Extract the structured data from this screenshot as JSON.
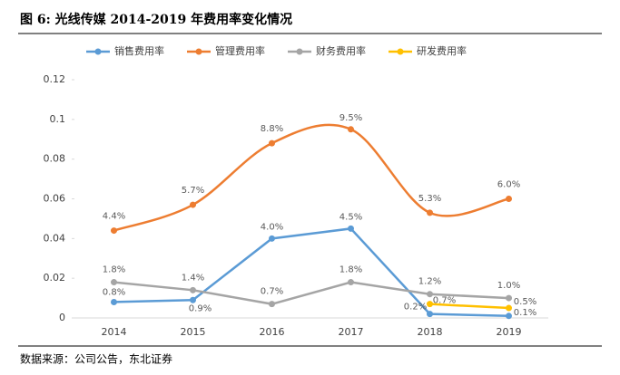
{
  "chart_data": {
    "type": "line",
    "title": "图 6:  光线传媒 2014-2019 年费用率变化情况",
    "source": "数据来源：公司公告，东北证券",
    "categories": [
      "2014",
      "2015",
      "2016",
      "2017",
      "2018",
      "2019"
    ],
    "ylim": [
      0,
      0.12
    ],
    "yticks": [
      0,
      0.02,
      0.04,
      0.06,
      0.08,
      0.1,
      0.12
    ],
    "legend": "top",
    "series": [
      {
        "name": "销售费用率",
        "color": "#5b9bd5",
        "smooth": false,
        "values": [
          0.008,
          0.009,
          0.04,
          0.045,
          0.002,
          0.001
        ],
        "value_labels": [
          "0.8%",
          "0.9%",
          "4.0%",
          "4.5%",
          "0.2%",
          "0.1%"
        ]
      },
      {
        "name": "管理费用率",
        "color": "#ed7d31",
        "smooth": true,
        "values": [
          0.044,
          0.057,
          0.088,
          0.095,
          0.053,
          0.06
        ],
        "value_labels": [
          "4.4%",
          "5.7%",
          "8.8%",
          "9.5%",
          "5.3%",
          "6.0%"
        ]
      },
      {
        "name": "财务费用率",
        "color": "#a5a5a5",
        "smooth": false,
        "values": [
          0.018,
          0.014,
          0.007,
          0.018,
          0.012,
          0.01
        ],
        "value_labels": [
          "1.8%",
          "1.4%",
          "0.7%",
          "1.8%",
          "1.2%",
          "1.0%"
        ]
      },
      {
        "name": "研发费用率",
        "color": "#ffc000",
        "smooth": false,
        "values": [
          null,
          null,
          null,
          null,
          0.007,
          0.005
        ],
        "value_labels": [
          null,
          null,
          null,
          null,
          "0.7%",
          "0.5%"
        ]
      }
    ]
  }
}
